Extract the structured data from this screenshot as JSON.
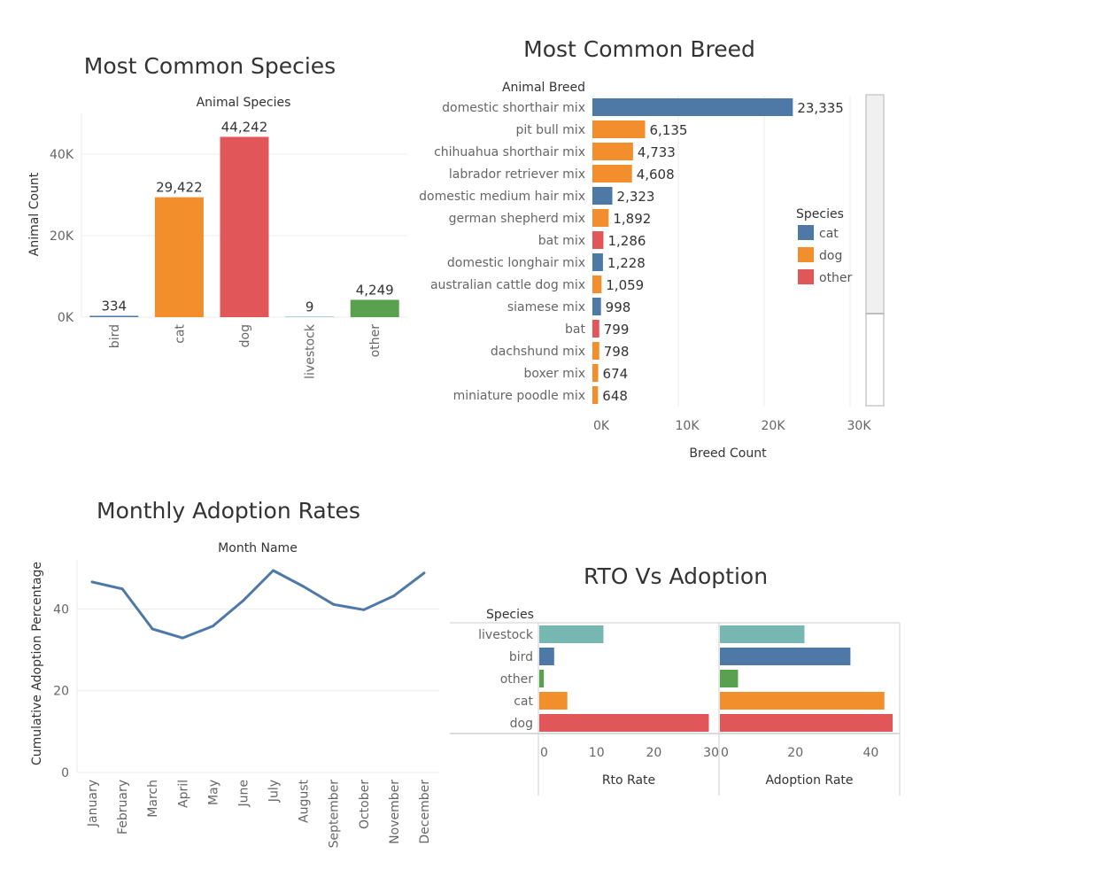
{
  "colors": {
    "cat": "#4e79a7",
    "dog": "#f28e2b",
    "other": "#e15759",
    "livestock": "#76b7b2",
    "bird": "#4e79a7",
    "bird_green": "#59a14f",
    "grid": "#ebebeb",
    "axis": "#cfcfcf"
  },
  "chart_data": [
    {
      "id": "species",
      "type": "bar",
      "title": "Most Common Species",
      "xlabel": "Animal Species",
      "ylabel": "Animal Count",
      "categories": [
        "bird",
        "cat",
        "dog",
        "livestock",
        "other"
      ],
      "values": [
        334,
        29422,
        44242,
        9,
        4249
      ],
      "value_labels": [
        "334",
        "29,422",
        "44,242",
        "9",
        "4,249"
      ],
      "bar_colors": [
        "#4e79a7",
        "#f28e2b",
        "#e15759",
        "#76b7b2",
        "#59a14f"
      ],
      "ylim": [
        0,
        50000
      ],
      "yticks": [
        0,
        20000,
        40000
      ],
      "ytick_labels": [
        "0K",
        "20K",
        "40K"
      ],
      "grid": true
    },
    {
      "id": "breed",
      "type": "bar",
      "orientation": "horizontal",
      "title": "Most Common Breed",
      "ylabel": "Animal Breed",
      "xlabel": "Breed Count",
      "categories": [
        "domestic shorthair mix",
        "pit bull mix",
        "chihuahua shorthair mix",
        "labrador retriever mix",
        "domestic medium hair mix",
        "german shepherd mix",
        "bat mix",
        "domestic longhair mix",
        "australian cattle dog mix",
        "siamese mix",
        "bat",
        "dachshund mix",
        "boxer mix",
        "miniature poodle mix"
      ],
      "values": [
        23335,
        6135,
        4733,
        4608,
        2323,
        1892,
        1286,
        1228,
        1059,
        998,
        799,
        798,
        674,
        648
      ],
      "value_labels": [
        "23,335",
        "6,135",
        "4,733",
        "4,608",
        "2,323",
        "1,892",
        "1,286",
        "1,228",
        "1,059",
        "998",
        "799",
        "798",
        "674",
        "648"
      ],
      "species": [
        "cat",
        "dog",
        "dog",
        "dog",
        "cat",
        "dog",
        "other",
        "cat",
        "dog",
        "cat",
        "other",
        "dog",
        "dog",
        "dog"
      ],
      "xlim": [
        0,
        30000
      ],
      "xticks": [
        0,
        10000,
        20000,
        30000
      ],
      "xtick_labels": [
        "0K",
        "10K",
        "20K",
        "30K"
      ],
      "legend": {
        "title": "Species",
        "items": [
          "cat",
          "dog",
          "other"
        ],
        "placement": "right"
      },
      "grid": true
    },
    {
      "id": "monthly",
      "type": "line",
      "title": "Monthly Adoption Rates",
      "xlabel": "Month Name",
      "ylabel": "Cumulative Adoption Percentage",
      "categories": [
        "January",
        "February",
        "March",
        "April",
        "May",
        "June",
        "July",
        "August",
        "September",
        "October",
        "November",
        "December"
      ],
      "values": [
        46.6,
        44.9,
        35.1,
        32.9,
        35.8,
        42.0,
        49.4,
        45.5,
        41.1,
        39.8,
        43.2,
        48.8
      ],
      "ylim": [
        0,
        52
      ],
      "yticks": [
        0,
        20,
        40
      ],
      "ytick_labels": [
        "0",
        "20",
        "40"
      ],
      "grid": true
    },
    {
      "id": "rto",
      "type": "bar",
      "orientation": "horizontal",
      "title": "RTO Vs Adoption",
      "ylabel": "Species",
      "categories": [
        "livestock",
        "bird",
        "other",
        "cat",
        "dog"
      ],
      "bar_colors": [
        "#76b7b2",
        "#4e79a7",
        "#59a14f",
        "#f28e2b",
        "#e15759"
      ],
      "panels": [
        {
          "xlabel": "Rto Rate",
          "values": [
            11.2,
            2.6,
            0.8,
            4.9,
            29.6
          ],
          "xlim": [
            0,
            30
          ],
          "xticks": [
            0,
            10,
            20,
            30
          ],
          "xtick_labels": [
            "0",
            "10",
            "20",
            "30"
          ]
        },
        {
          "xlabel": "Adoption Rate",
          "values": [
            22.4,
            34.6,
            4.8,
            43.6,
            45.8
          ],
          "xlim": [
            0,
            48
          ],
          "xticks": [
            0,
            20,
            40
          ],
          "xtick_labels": [
            "0",
            "20",
            "40"
          ]
        }
      ]
    }
  ]
}
